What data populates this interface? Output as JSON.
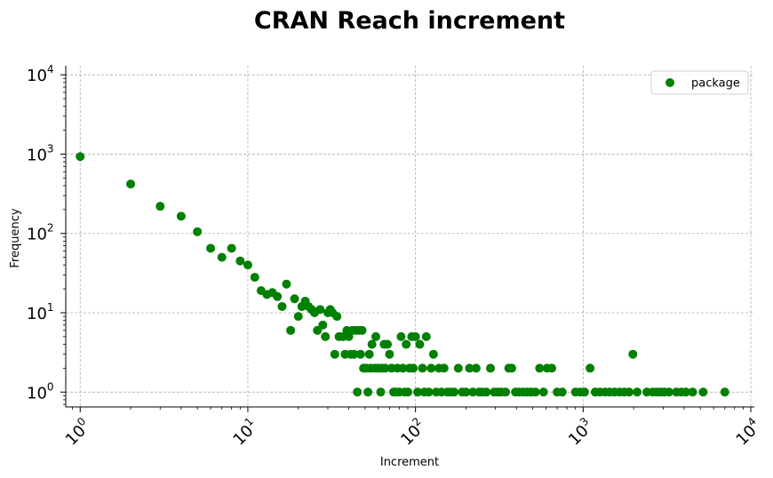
{
  "chart_data": {
    "type": "scatter",
    "title": "CRAN Reach increment",
    "xlabel": "Increment",
    "ylabel": "Frequency",
    "xscale": "log",
    "yscale": "log",
    "xlim": [
      0.82,
      10500
    ],
    "ylim": [
      0.65,
      13000
    ],
    "x_ticks": [
      {
        "base": "10",
        "exp": "0",
        "value": 1
      },
      {
        "base": "10",
        "exp": "1",
        "value": 10
      },
      {
        "base": "10",
        "exp": "2",
        "value": 100
      },
      {
        "base": "10",
        "exp": "3",
        "value": 1000
      },
      {
        "base": "10",
        "exp": "4",
        "value": 10000
      }
    ],
    "y_ticks": [
      {
        "base": "10",
        "exp": "0",
        "value": 1
      },
      {
        "base": "10",
        "exp": "1",
        "value": 10
      },
      {
        "base": "10",
        "exp": "2",
        "value": 100
      },
      {
        "base": "10",
        "exp": "3",
        "value": 1000
      },
      {
        "base": "10",
        "exp": "4",
        "value": 10000
      }
    ],
    "grid": true,
    "legend_position": "top-right",
    "series": [
      {
        "name": "package",
        "color": "#008000",
        "points": [
          [
            1,
            930
          ],
          [
            2,
            420
          ],
          [
            3,
            220
          ],
          [
            4,
            165
          ],
          [
            5,
            105
          ],
          [
            6,
            65
          ],
          [
            7,
            50
          ],
          [
            8,
            65
          ],
          [
            9,
            45
          ],
          [
            10,
            40
          ],
          [
            11,
            28
          ],
          [
            12,
            19
          ],
          [
            13,
            17
          ],
          [
            14,
            18
          ],
          [
            15,
            16
          ],
          [
            16,
            12
          ],
          [
            17,
            23
          ],
          [
            18,
            6
          ],
          [
            19,
            15
          ],
          [
            20,
            9
          ],
          [
            21,
            12
          ],
          [
            22,
            14
          ],
          [
            23,
            12
          ],
          [
            24,
            11
          ],
          [
            25,
            10
          ],
          [
            26,
            6
          ],
          [
            27,
            11
          ],
          [
            28,
            7
          ],
          [
            29,
            5
          ],
          [
            30,
            10
          ],
          [
            31,
            11
          ],
          [
            32,
            10
          ],
          [
            33,
            3
          ],
          [
            34,
            9
          ],
          [
            35,
            5
          ],
          [
            37,
            5
          ],
          [
            38,
            3
          ],
          [
            39,
            6
          ],
          [
            40,
            5
          ],
          [
            41,
            3
          ],
          [
            42,
            6
          ],
          [
            43,
            3
          ],
          [
            44,
            6
          ],
          [
            45,
            1
          ],
          [
            46,
            6
          ],
          [
            47,
            3
          ],
          [
            48,
            6
          ],
          [
            49,
            2
          ],
          [
            51,
            2
          ],
          [
            52,
            1
          ],
          [
            53,
            3
          ],
          [
            54,
            2
          ],
          [
            55,
            4
          ],
          [
            57,
            2
          ],
          [
            58,
            5
          ],
          [
            60,
            2
          ],
          [
            62,
            1
          ],
          [
            63,
            2
          ],
          [
            65,
            4
          ],
          [
            66,
            2
          ],
          [
            68,
            4
          ],
          [
            70,
            3
          ],
          [
            72,
            2
          ],
          [
            74,
            1
          ],
          [
            76,
            1
          ],
          [
            78,
            2
          ],
          [
            80,
            1
          ],
          [
            82,
            5
          ],
          [
            84,
            2
          ],
          [
            86,
            1
          ],
          [
            88,
            4
          ],
          [
            90,
            1
          ],
          [
            92,
            2
          ],
          [
            95,
            5
          ],
          [
            97,
            2
          ],
          [
            100,
            5
          ],
          [
            103,
            1
          ],
          [
            106,
            4
          ],
          [
            110,
            2
          ],
          [
            113,
            1
          ],
          [
            116,
            5
          ],
          [
            120,
            1
          ],
          [
            124,
            2
          ],
          [
            128,
            3
          ],
          [
            133,
            1
          ],
          [
            138,
            2
          ],
          [
            143,
            1
          ],
          [
            148,
            2
          ],
          [
            155,
            1
          ],
          [
            162,
            1
          ],
          [
            170,
            1
          ],
          [
            180,
            2
          ],
          [
            190,
            1
          ],
          [
            200,
            1
          ],
          [
            210,
            2
          ],
          [
            220,
            1
          ],
          [
            230,
            2
          ],
          [
            240,
            1
          ],
          [
            250,
            1
          ],
          [
            265,
            1
          ],
          [
            280,
            2
          ],
          [
            295,
            1
          ],
          [
            310,
            1
          ],
          [
            325,
            1
          ],
          [
            345,
            1
          ],
          [
            360,
            2
          ],
          [
            375,
            2
          ],
          [
            395,
            1
          ],
          [
            415,
            1
          ],
          [
            440,
            1
          ],
          [
            465,
            1
          ],
          [
            490,
            1
          ],
          [
            520,
            1
          ],
          [
            550,
            2
          ],
          [
            580,
            1
          ],
          [
            610,
            2
          ],
          [
            650,
            2
          ],
          [
            700,
            1
          ],
          [
            750,
            1
          ],
          [
            900,
            1
          ],
          [
            960,
            1
          ],
          [
            1020,
            1
          ],
          [
            1100,
            2
          ],
          [
            1180,
            1
          ],
          [
            1260,
            1
          ],
          [
            1350,
            1
          ],
          [
            1440,
            1
          ],
          [
            1540,
            1
          ],
          [
            1650,
            1
          ],
          [
            1760,
            1
          ],
          [
            1880,
            1
          ],
          [
            1980,
            3
          ],
          [
            2100,
            1
          ],
          [
            2400,
            1
          ],
          [
            2600,
            1
          ],
          [
            2750,
            1
          ],
          [
            2900,
            1
          ],
          [
            3050,
            1
          ],
          [
            3250,
            1
          ],
          [
            3600,
            1
          ],
          [
            3850,
            1
          ],
          [
            4100,
            1
          ],
          [
            4500,
            1
          ],
          [
            5200,
            1
          ],
          [
            7000,
            1
          ]
        ]
      }
    ]
  }
}
